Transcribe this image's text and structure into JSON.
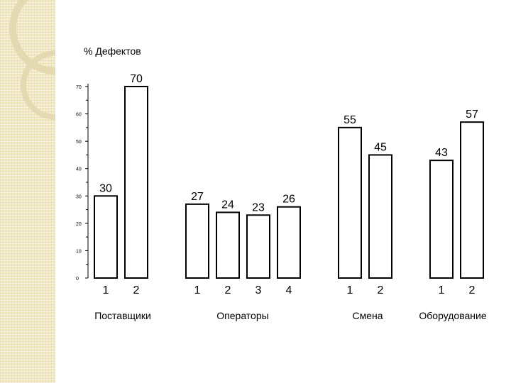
{
  "chart_data": {
    "type": "bar",
    "ylabel": "% Дефектов",
    "ylim": [
      0,
      70
    ],
    "yticks": [
      0,
      10,
      20,
      30,
      40,
      50,
      60,
      70
    ],
    "grid": false,
    "groups": [
      {
        "label": "Поставщики",
        "categories": [
          "1",
          "2"
        ],
        "values": [
          30,
          70
        ]
      },
      {
        "label": "Операторы",
        "categories": [
          "1",
          "2",
          "3",
          "4"
        ],
        "values": [
          27,
          24,
          23,
          26
        ]
      },
      {
        "label": "Смена",
        "categories": [
          "1",
          "2"
        ],
        "values": [
          55,
          45
        ]
      },
      {
        "label": "Оборудование",
        "categories": [
          "1",
          "2"
        ],
        "values": [
          43,
          57
        ]
      }
    ]
  },
  "colors": {
    "bar_fill": "#ffffff",
    "bar_stroke": "#000000",
    "side_band": "#f1e8c6"
  }
}
